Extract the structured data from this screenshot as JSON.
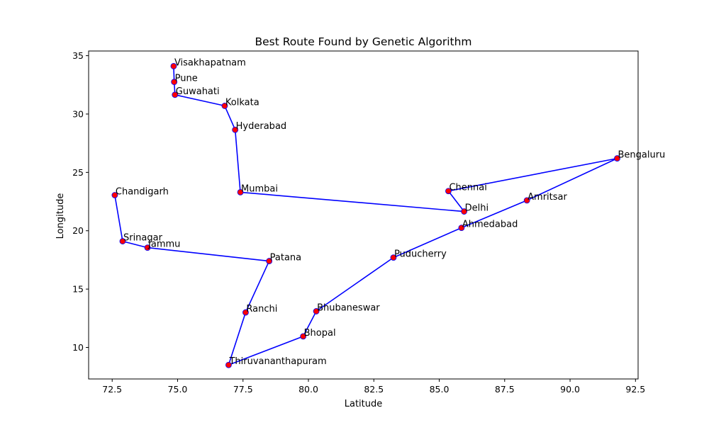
{
  "chart_data": {
    "type": "line",
    "title": "Best Route Found by Genetic Algorithm",
    "xlabel": "Latitude",
    "ylabel": "Longitude",
    "xlim": [
      71.6,
      92.6
    ],
    "ylim": [
      7.3,
      35.4
    ],
    "xticks": [
      72.5,
      75.0,
      77.5,
      80.0,
      82.5,
      85.0,
      87.5,
      90.0,
      92.5
    ],
    "xtick_labels": [
      "72.5",
      "75.0",
      "77.5",
      "80.0",
      "82.5",
      "85.0",
      "87.5",
      "90.0",
      "92.5"
    ],
    "yticks": [
      10,
      15,
      20,
      25,
      30,
      35
    ],
    "ytick_labels": [
      "10",
      "15",
      "20",
      "25",
      "30",
      "35"
    ],
    "grid": false,
    "line_color": "#0000ff",
    "marker_color": "#ff0000",
    "series": [
      {
        "points": [
          {
            "label": "Visakhapatnam",
            "x": 74.85,
            "y": 34.1
          },
          {
            "label": "Pune",
            "x": 74.87,
            "y": 32.75
          },
          {
            "label": "Guwahati",
            "x": 74.9,
            "y": 31.65
          },
          {
            "label": "Kolkata",
            "x": 76.8,
            "y": 30.7
          },
          {
            "label": "Hyderabad",
            "x": 77.2,
            "y": 28.65
          },
          {
            "label": "Mumbai",
            "x": 77.4,
            "y": 23.3
          },
          {
            "label": "Delhi",
            "x": 85.95,
            "y": 21.65
          },
          {
            "label": "Chennai",
            "x": 85.35,
            "y": 23.4
          },
          {
            "label": "Bengaluru",
            "x": 91.8,
            "y": 26.2
          },
          {
            "label": "Amritsar",
            "x": 88.35,
            "y": 22.6
          },
          {
            "label": "Ahmedabad",
            "x": 85.85,
            "y": 20.25
          },
          {
            "label": "Puducherry",
            "x": 83.25,
            "y": 17.7
          },
          {
            "label": "Bhubaneswar",
            "x": 80.3,
            "y": 13.1
          },
          {
            "label": "Bhopal",
            "x": 79.8,
            "y": 10.95
          },
          {
            "label": "Thiruvananthapuram",
            "x": 76.95,
            "y": 8.5
          },
          {
            "label": "Ranchi",
            "x": 77.6,
            "y": 13.0
          },
          {
            "label": "Patana",
            "x": 78.5,
            "y": 17.4
          },
          {
            "label": "Jammu",
            "x": 73.85,
            "y": 18.55
          },
          {
            "label": "Srinagar",
            "x": 72.9,
            "y": 19.1
          },
          {
            "label": "Chandigarh",
            "x": 72.6,
            "y": 23.05
          }
        ]
      }
    ]
  }
}
